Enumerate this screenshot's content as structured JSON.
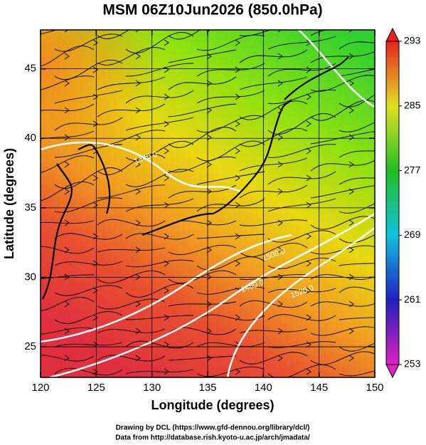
{
  "chart_data": {
    "type": "map",
    "title": "MSM 06Z10Jun2026 (850.0hPa)",
    "x_label": "Longitude (degrees)",
    "y_label": "Latitude  (degrees)",
    "xlim": [
      120,
      150
    ],
    "ylim": [
      22.8,
      47.8
    ],
    "xticks": [
      120,
      125,
      130,
      135,
      140,
      145,
      150
    ],
    "yticks": [
      25,
      30,
      35,
      40,
      45
    ],
    "grid": true,
    "colorbar": {
      "lim": [
        253,
        293
      ],
      "ticks": [
        253,
        261,
        269,
        277,
        285,
        293
      ],
      "colors": [
        "#e020c0",
        "#2020c0",
        "#10c0e0",
        "#20c020",
        "#e0e020",
        "#e82020"
      ]
    },
    "contour_labels": [
      "1440.0",
      "1500.0",
      "1480.0",
      "1520.0"
    ],
    "credits": [
      "Drawing by DCL (https://www.gfd-dennou.org/library/dcl/)",
      "Data from http://database.rish.kyoto-u.ac.jp/arch/jmadata/"
    ]
  }
}
